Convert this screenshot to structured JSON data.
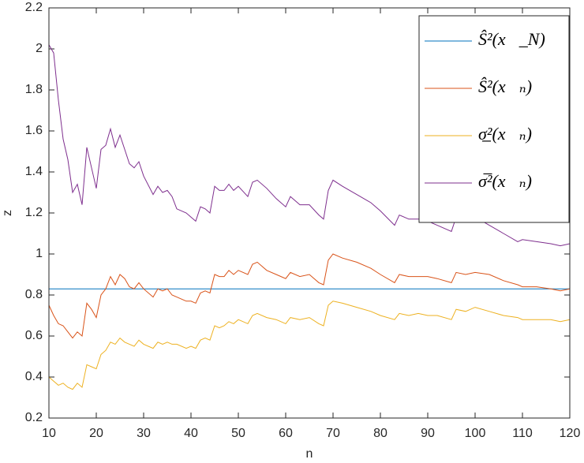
{
  "chart_data": {
    "type": "line",
    "xlabel": "n",
    "ylabel": "z",
    "xlim": [
      10,
      120
    ],
    "xticks": [
      10,
      20,
      30,
      40,
      50,
      60,
      70,
      80,
      90,
      100,
      110,
      120
    ],
    "ylim": [
      0.2,
      2.2
    ],
    "yticks": [
      0.2,
      0.4,
      0.6,
      0.8,
      1,
      1.2,
      1.4,
      1.6,
      1.8,
      2,
      2.2
    ],
    "grid": false,
    "legend": "northeast",
    "x": [
      10,
      11,
      12,
      13,
      14,
      15,
      16,
      17,
      18,
      19,
      20,
      21,
      22,
      23,
      24,
      25,
      26,
      27,
      28,
      29,
      30,
      32,
      33,
      34,
      35,
      36,
      37,
      39,
      40,
      41,
      42,
      43,
      44,
      45,
      46,
      47,
      48,
      49,
      50,
      52,
      53,
      54,
      56,
      58,
      60,
      61,
      63,
      65,
      67,
      68,
      69,
      70,
      72,
      75,
      78,
      80,
      83,
      84,
      86,
      88,
      90,
      92,
      95,
      96,
      98,
      100,
      103,
      106,
      109,
      110,
      113,
      116,
      118,
      120
    ],
    "series": [
      {
        "name": "Ŝ²(x⃗_N)",
        "color": "#0072BD",
        "x": [
          10,
          120
        ],
        "values": [
          0.83,
          0.83
        ]
      },
      {
        "name": "Ŝ²(x⃗ₙ)",
        "color": "#D95319",
        "values": [
          0.75,
          0.7,
          0.66,
          0.65,
          0.62,
          0.59,
          0.62,
          0.6,
          0.76,
          0.73,
          0.69,
          0.8,
          0.83,
          0.89,
          0.85,
          0.9,
          0.88,
          0.84,
          0.83,
          0.86,
          0.83,
          0.79,
          0.83,
          0.82,
          0.83,
          0.8,
          0.79,
          0.77,
          0.77,
          0.76,
          0.81,
          0.82,
          0.81,
          0.9,
          0.89,
          0.89,
          0.92,
          0.9,
          0.92,
          0.9,
          0.95,
          0.96,
          0.92,
          0.9,
          0.88,
          0.91,
          0.89,
          0.9,
          0.86,
          0.85,
          0.97,
          1.0,
          0.98,
          0.96,
          0.93,
          0.9,
          0.86,
          0.9,
          0.89,
          0.89,
          0.89,
          0.88,
          0.86,
          0.91,
          0.9,
          0.91,
          0.9,
          0.87,
          0.85,
          0.84,
          0.84,
          0.83,
          0.82,
          0.83
        ]
      },
      {
        "name": "σ̲²(x⃗ₙ)",
        "color": "#EDB120",
        "values": [
          0.4,
          0.38,
          0.36,
          0.37,
          0.35,
          0.34,
          0.37,
          0.35,
          0.46,
          0.45,
          0.44,
          0.51,
          0.53,
          0.57,
          0.56,
          0.59,
          0.57,
          0.56,
          0.55,
          0.58,
          0.56,
          0.54,
          0.57,
          0.56,
          0.57,
          0.56,
          0.56,
          0.54,
          0.55,
          0.54,
          0.58,
          0.59,
          0.58,
          0.65,
          0.64,
          0.65,
          0.67,
          0.66,
          0.68,
          0.66,
          0.7,
          0.71,
          0.69,
          0.68,
          0.66,
          0.69,
          0.68,
          0.69,
          0.66,
          0.65,
          0.75,
          0.77,
          0.76,
          0.74,
          0.72,
          0.7,
          0.68,
          0.71,
          0.7,
          0.71,
          0.7,
          0.7,
          0.68,
          0.73,
          0.72,
          0.74,
          0.72,
          0.7,
          0.69,
          0.68,
          0.68,
          0.68,
          0.67,
          0.68
        ]
      },
      {
        "name": "σ̅²(x⃗ₙ)",
        "color": "#7E2F8E",
        "values": [
          2.02,
          1.98,
          1.75,
          1.56,
          1.46,
          1.3,
          1.34,
          1.24,
          1.52,
          1.42,
          1.32,
          1.51,
          1.53,
          1.61,
          1.52,
          1.58,
          1.51,
          1.44,
          1.42,
          1.45,
          1.38,
          1.29,
          1.33,
          1.3,
          1.31,
          1.28,
          1.22,
          1.2,
          1.18,
          1.16,
          1.23,
          1.22,
          1.2,
          1.33,
          1.31,
          1.31,
          1.34,
          1.31,
          1.33,
          1.28,
          1.35,
          1.36,
          1.32,
          1.27,
          1.23,
          1.28,
          1.24,
          1.24,
          1.19,
          1.17,
          1.31,
          1.36,
          1.33,
          1.29,
          1.25,
          1.21,
          1.14,
          1.19,
          1.17,
          1.17,
          1.16,
          1.14,
          1.11,
          1.18,
          1.17,
          1.18,
          1.14,
          1.1,
          1.06,
          1.07,
          1.06,
          1.05,
          1.04,
          1.05
        ]
      }
    ]
  }
}
